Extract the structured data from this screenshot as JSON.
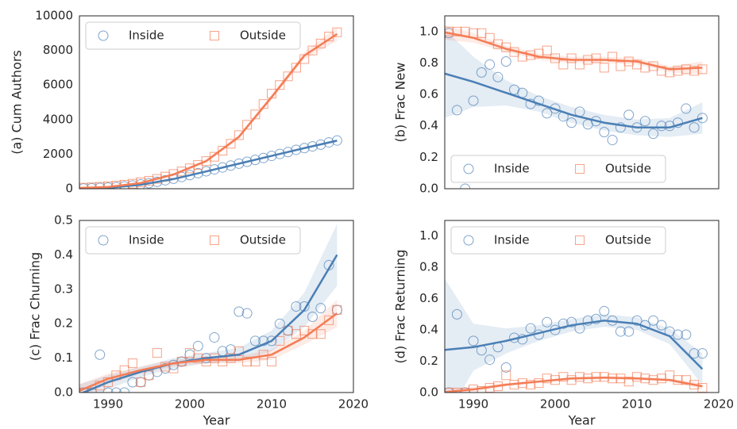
{
  "chart_data": [
    {
      "type": "scatter",
      "ylabel": "(a) Cum Authors",
      "xlim": [
        1986.5,
        2020
      ],
      "ylim": [
        0,
        10000
      ],
      "yticks": [
        0,
        2000,
        4000,
        6000,
        8000,
        10000
      ],
      "legend": "upper left",
      "x": [
        1986,
        1987,
        1988,
        1989,
        1990,
        1991,
        1992,
        1993,
        1994,
        1995,
        1996,
        1997,
        1998,
        1999,
        2000,
        2001,
        2002,
        2003,
        2004,
        2005,
        2006,
        2007,
        2008,
        2009,
        2010,
        2011,
        2012,
        2013,
        2014,
        2015,
        2016,
        2017,
        2018
      ],
      "fit_x": [
        1986,
        1990,
        1994,
        1998,
        2002,
        2006,
        2010,
        2014,
        2018
      ],
      "series": [
        {
          "name": "Inside",
          "color": "#4a7fb5",
          "values": [
            10,
            20,
            30,
            50,
            70,
            100,
            140,
            190,
            250,
            320,
            400,
            490,
            580,
            680,
            790,
            900,
            1010,
            1120,
            1230,
            1340,
            1450,
            1560,
            1670,
            1780,
            1900,
            2010,
            2120,
            2250,
            2350,
            2450,
            2550,
            2680,
            2790
          ],
          "fit": [
            0,
            50,
            230,
            560,
            1000,
            1450,
            1900,
            2350,
            2780
          ],
          "ci_low": [
            -60,
            -10,
            170,
            500,
            940,
            1390,
            1840,
            2290,
            2700
          ],
          "ci_high": [
            60,
            110,
            290,
            620,
            1060,
            1510,
            1960,
            2410,
            2860
          ]
        },
        {
          "name": "Outside",
          "color": "#f47c55",
          "values": [
            40,
            60,
            80,
            110,
            140,
            180,
            230,
            290,
            370,
            460,
            570,
            700,
            850,
            1000,
            1180,
            1380,
            1600,
            1850,
            2200,
            2600,
            3100,
            3700,
            4300,
            4900,
            5500,
            6000,
            6500,
            7000,
            7500,
            8000,
            8400,
            8800,
            9050
          ],
          "fit": [
            30,
            100,
            330,
            820,
            1600,
            3000,
            5300,
            7700,
            8950
          ],
          "ci_low": [
            -70,
            20,
            250,
            730,
            1500,
            2880,
            5150,
            7500,
            8550
          ],
          "ci_high": [
            130,
            180,
            410,
            910,
            1700,
            3120,
            5450,
            7900,
            9350
          ]
        }
      ]
    },
    {
      "type": "scatter",
      "ylabel": "(b) Frac New",
      "xlim": [
        1986.5,
        2020
      ],
      "ylim": [
        0,
        1.1
      ],
      "yticks": [
        {
          "value": 0,
          "label": "0.0"
        },
        0.2,
        0.4,
        0.6,
        0.8,
        {
          "value": 1,
          "label": "1.0"
        }
      ],
      "legend": "lower left",
      "x": [
        1986,
        1987,
        1988,
        1989,
        1990,
        1991,
        1992,
        1993,
        1994,
        1995,
        1996,
        1997,
        1998,
        1999,
        2000,
        2001,
        2002,
        2003,
        2004,
        2005,
        2006,
        2007,
        2008,
        2009,
        2010,
        2011,
        2012,
        2013,
        2014,
        2015,
        2016,
        2017,
        2018
      ],
      "fit_x": [
        1986,
        1990,
        1994,
        1998,
        2002,
        2006,
        2010,
        2014,
        2018
      ],
      "series": [
        {
          "name": "Inside",
          "color": "#4a7fb5",
          "values": [
            0.97,
            0.99,
            0.5,
            0.0,
            0.56,
            0.74,
            0.79,
            0.71,
            0.81,
            0.63,
            0.61,
            0.54,
            0.56,
            0.48,
            0.51,
            0.46,
            0.42,
            0.49,
            0.41,
            0.43,
            0.36,
            0.31,
            0.39,
            0.47,
            0.39,
            0.43,
            0.35,
            0.4,
            0.4,
            0.42,
            0.51,
            0.39,
            0.45
          ],
          "fit": [
            0.74,
            0.68,
            0.61,
            0.54,
            0.47,
            0.42,
            0.39,
            0.39,
            0.45
          ],
          "ci_low": [
            0.44,
            0.52,
            0.53,
            0.49,
            0.42,
            0.37,
            0.34,
            0.33,
            0.35
          ],
          "ci_high": [
            1.04,
            0.84,
            0.69,
            0.59,
            0.52,
            0.47,
            0.44,
            0.45,
            0.55
          ]
        },
        {
          "name": "Outside",
          "color": "#f47c55",
          "values": [
            1.0,
            1.0,
            1.0,
            1.0,
            0.99,
            0.99,
            0.96,
            0.92,
            0.9,
            0.87,
            0.84,
            0.85,
            0.86,
            0.88,
            0.83,
            0.79,
            0.83,
            0.79,
            0.82,
            0.83,
            0.77,
            0.84,
            0.78,
            0.81,
            0.79,
            0.77,
            0.78,
            0.75,
            0.74,
            0.75,
            0.76,
            0.75,
            0.76
          ],
          "fit": [
            1.0,
            0.96,
            0.89,
            0.84,
            0.82,
            0.82,
            0.81,
            0.76,
            0.77
          ],
          "ci_low": [
            0.95,
            0.93,
            0.87,
            0.82,
            0.8,
            0.8,
            0.79,
            0.74,
            0.73
          ],
          "ci_high": [
            1.05,
            0.99,
            0.91,
            0.86,
            0.84,
            0.84,
            0.83,
            0.78,
            0.81
          ]
        }
      ]
    },
    {
      "type": "scatter",
      "ylabel": "(c) Frac Churning",
      "xlabel": "Year",
      "xlim": [
        1986.5,
        2020
      ],
      "xticks": [
        1990,
        2000,
        2010,
        2020
      ],
      "ylim": [
        0,
        0.5
      ],
      "yticks": [
        {
          "value": 0,
          "label": "0.0"
        },
        0.1,
        0.2,
        0.3,
        0.4,
        0.5
      ],
      "legend": "upper left",
      "x": [
        1986,
        1987,
        1988,
        1989,
        1990,
        1991,
        1992,
        1993,
        1994,
        1995,
        1996,
        1997,
        1998,
        1999,
        2000,
        2001,
        2002,
        2003,
        2004,
        2005,
        2006,
        2007,
        2008,
        2009,
        2010,
        2011,
        2012,
        2013,
        2014,
        2015,
        2016,
        2017,
        2018
      ],
      "fit_x": [
        1986,
        1990,
        1994,
        1998,
        2002,
        2006,
        2010,
        2014,
        2018
      ],
      "series": [
        {
          "name": "Inside",
          "color": "#4a7fb5",
          "values": [
            0,
            0,
            0,
            0.11,
            0,
            0,
            0,
            0.03,
            0.03,
            0.05,
            0.06,
            0.07,
            0.08,
            0.09,
            0.11,
            0.135,
            0.1,
            0.16,
            0.12,
            0.125,
            0.235,
            0.23,
            0.15,
            0.15,
            0.15,
            0.2,
            0.18,
            0.25,
            0.25,
            0.22,
            0.245,
            0.37,
            0.24
          ],
          "fit": [
            -0.01,
            0.03,
            0.06,
            0.085,
            0.1,
            0.11,
            0.15,
            0.24,
            0.4
          ],
          "ci_low": [
            -0.04,
            0.01,
            0.045,
            0.07,
            0.085,
            0.09,
            0.12,
            0.19,
            0.31
          ],
          "ci_high": [
            0.02,
            0.05,
            0.075,
            0.1,
            0.115,
            0.13,
            0.18,
            0.29,
            0.49
          ]
        },
        {
          "name": "Outside",
          "color": "#f47c55",
          "values": [
            0,
            0,
            0,
            0.02,
            0.03,
            0.05,
            0.065,
            0.085,
            0.03,
            0.05,
            0.115,
            0.075,
            0.07,
            0.09,
            0.115,
            0.1,
            0.09,
            0.1,
            0.09,
            0.1,
            0.12,
            0.09,
            0.09,
            0.11,
            0.09,
            0.15,
            0.18,
            0.17,
            0.18,
            0.17,
            0.17,
            0.21,
            0.24
          ],
          "fit": [
            0.0,
            0.04,
            0.065,
            0.085,
            0.095,
            0.095,
            0.11,
            0.16,
            0.23
          ],
          "ci_low": [
            -0.02,
            0.025,
            0.055,
            0.075,
            0.085,
            0.085,
            0.095,
            0.14,
            0.19
          ],
          "ci_high": [
            0.02,
            0.055,
            0.075,
            0.095,
            0.105,
            0.105,
            0.125,
            0.18,
            0.27
          ]
        }
      ]
    },
    {
      "type": "scatter",
      "ylabel": "(d) Frac Returning",
      "xlabel": "Year",
      "xlim": [
        1986.5,
        2020
      ],
      "xticks": [
        1990,
        2000,
        2010,
        2020
      ],
      "ylim": [
        0,
        1.1
      ],
      "yticks": [
        {
          "value": 0,
          "label": "0.0"
        },
        0.2,
        0.4,
        0.6,
        0.8,
        {
          "value": 1,
          "label": "1.0"
        }
      ],
      "legend": "upper left",
      "x": [
        1986,
        1987,
        1988,
        1989,
        1990,
        1991,
        1992,
        1993,
        1994,
        1995,
        1996,
        1997,
        1998,
        1999,
        2000,
        2001,
        2002,
        2003,
        2004,
        2005,
        2006,
        2007,
        2008,
        2009,
        2010,
        2011,
        2012,
        2013,
        2014,
        2015,
        2016,
        2017,
        2018
      ],
      "fit_x": [
        1986,
        1990,
        1994,
        1998,
        2002,
        2006,
        2010,
        2014,
        2018
      ],
      "series": [
        {
          "name": "Inside",
          "color": "#4a7fb5",
          "values": [
            0,
            0,
            0.5,
            0,
            0.33,
            0.27,
            0.21,
            0.29,
            0.16,
            0.35,
            0.34,
            0.41,
            0.37,
            0.45,
            0.4,
            0.44,
            0.45,
            0.41,
            0.46,
            0.47,
            0.52,
            0.46,
            0.39,
            0.39,
            0.46,
            0.43,
            0.46,
            0.43,
            0.39,
            0.37,
            0.37,
            0.25,
            0.25
          ],
          "fit": [
            0.27,
            0.29,
            0.33,
            0.38,
            0.43,
            0.46,
            0.44,
            0.36,
            0.15
          ],
          "ci_low": [
            -0.23,
            0.14,
            0.25,
            0.33,
            0.39,
            0.42,
            0.4,
            0.31,
            0.05
          ],
          "ci_high": [
            0.77,
            0.44,
            0.41,
            0.43,
            0.47,
            0.5,
            0.48,
            0.41,
            0.25
          ]
        },
        {
          "name": "Outside",
          "color": "#f47c55",
          "values": [
            0,
            0,
            0,
            0,
            0.02,
            0.01,
            0.03,
            0.04,
            0.11,
            0.05,
            0.06,
            0.05,
            0.06,
            0.09,
            0.08,
            0.1,
            0.08,
            0.1,
            0.09,
            0.1,
            0.1,
            0.09,
            0.09,
            0.07,
            0.1,
            0.09,
            0.08,
            0.09,
            0.11,
            0.08,
            0.08,
            0.05,
            0.03
          ],
          "fit": [
            0.0,
            0.02,
            0.05,
            0.07,
            0.09,
            0.095,
            0.09,
            0.08,
            0.04
          ],
          "ci_low": [
            -0.02,
            0.005,
            0.04,
            0.06,
            0.08,
            0.085,
            0.08,
            0.07,
            0.02
          ],
          "ci_high": [
            0.02,
            0.035,
            0.06,
            0.08,
            0.1,
            0.105,
            0.1,
            0.09,
            0.06
          ]
        }
      ]
    }
  ]
}
